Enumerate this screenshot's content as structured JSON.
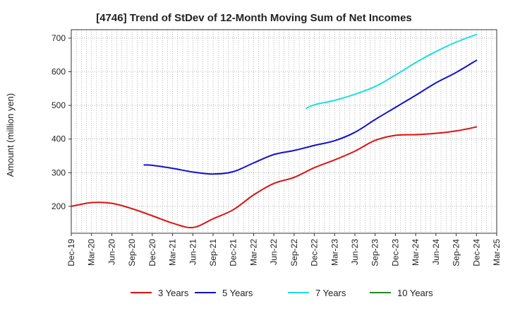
{
  "chart_data": {
    "type": "line",
    "title": "[4746]  Trend of StDev of 12-Month Moving Sum of Net Incomes",
    "xlabel": "",
    "ylabel": "Amount (million yen)",
    "ylim": [
      120,
      725
    ],
    "yticks": [
      200,
      300,
      400,
      500,
      600,
      700
    ],
    "xtick_labels": [
      "Dec-19",
      "Mar-20",
      "Jun-20",
      "Sep-20",
      "Dec-20",
      "Mar-21",
      "Jun-21",
      "Sep-21",
      "Dec-21",
      "Mar-22",
      "Jun-22",
      "Sep-22",
      "Dec-22",
      "Mar-23",
      "Jun-23",
      "Sep-23",
      "Dec-23",
      "Mar-24",
      "Jun-24",
      "Sep-24",
      "Dec-24",
      "Mar-25"
    ],
    "grid": true,
    "legend_position": "bottom",
    "series": [
      {
        "name": "3 Years",
        "color": "#dd1111",
        "points": [
          [
            0,
            200
          ],
          [
            1,
            211
          ],
          [
            2,
            209
          ],
          [
            3,
            193
          ],
          [
            4,
            172
          ],
          [
            5,
            150
          ],
          [
            6,
            137
          ],
          [
            7,
            163
          ],
          [
            8,
            190
          ],
          [
            9,
            234
          ],
          [
            10,
            268
          ],
          [
            11,
            286
          ],
          [
            12,
            315
          ],
          [
            13,
            338
          ],
          [
            14,
            364
          ],
          [
            15,
            396
          ],
          [
            16,
            411
          ],
          [
            17,
            413
          ],
          [
            18,
            417
          ],
          [
            19,
            424
          ],
          [
            20,
            436
          ]
        ]
      },
      {
        "name": "5 Years",
        "color": "#1111cc",
        "points": [
          [
            3.6,
            323
          ],
          [
            4,
            322
          ],
          [
            5,
            313
          ],
          [
            6,
            302
          ],
          [
            7,
            296
          ],
          [
            8,
            303
          ],
          [
            9,
            329
          ],
          [
            10,
            354
          ],
          [
            11,
            366
          ],
          [
            12,
            381
          ],
          [
            13,
            395
          ],
          [
            14,
            420
          ],
          [
            15,
            458
          ],
          [
            16,
            494
          ],
          [
            17,
            530
          ],
          [
            18,
            567
          ],
          [
            19,
            598
          ],
          [
            20,
            634
          ]
        ]
      },
      {
        "name": "7 Years",
        "color": "#22dddd",
        "points": [
          [
            11.6,
            491
          ],
          [
            12,
            502
          ],
          [
            13,
            515
          ],
          [
            14,
            533
          ],
          [
            15,
            556
          ],
          [
            16,
            590
          ],
          [
            17,
            627
          ],
          [
            18,
            660
          ],
          [
            19,
            688
          ],
          [
            20,
            711
          ]
        ]
      },
      {
        "name": "10 Years",
        "color": "#228822",
        "points": []
      }
    ]
  }
}
